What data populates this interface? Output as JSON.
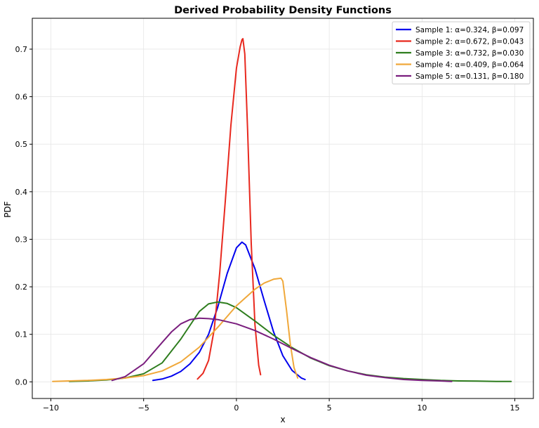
{
  "chart_data": {
    "type": "line",
    "title": "Derived Probability Density Functions",
    "xlabel": "x",
    "ylabel": "PDF",
    "xlim": [
      -11,
      16
    ],
    "ylim": [
      -0.035,
      0.765
    ],
    "xticks": [
      -10,
      -5,
      0,
      5,
      10,
      15
    ],
    "yticks": [
      0.0,
      0.1,
      0.2,
      0.3,
      0.4,
      0.5,
      0.6,
      0.7
    ],
    "xtick_labels": [
      "−10",
      "−5",
      "0",
      "5",
      "10",
      "15"
    ],
    "ytick_labels": [
      "0.0",
      "0.1",
      "0.2",
      "0.3",
      "0.4",
      "0.5",
      "0.6",
      "0.7"
    ],
    "grid": true,
    "legend_position": "top-right",
    "series": [
      {
        "name": "Sample 1: α=0.324, β=0.097",
        "color": "#0000ee",
        "x": [
          -4.5,
          -4.0,
          -3.5,
          -3.0,
          -2.5,
          -2.0,
          -1.5,
          -1.0,
          -0.5,
          0.0,
          0.3,
          0.5,
          1.0,
          1.5,
          2.0,
          2.5,
          3.0,
          3.5,
          3.7
        ],
        "y": [
          0.003,
          0.006,
          0.012,
          0.022,
          0.038,
          0.062,
          0.1,
          0.158,
          0.228,
          0.282,
          0.294,
          0.288,
          0.238,
          0.17,
          0.105,
          0.055,
          0.024,
          0.008,
          0.005
        ]
      },
      {
        "name": "Sample 2: α=0.672, β=0.043",
        "color": "#e8281e",
        "x": [
          -2.1,
          -1.8,
          -1.5,
          -1.2,
          -0.9,
          -0.6,
          -0.3,
          0.0,
          0.2,
          0.3,
          0.35,
          0.45,
          0.6,
          0.8,
          1.0,
          1.2,
          1.3
        ],
        "y": [
          0.006,
          0.018,
          0.045,
          0.11,
          0.23,
          0.38,
          0.54,
          0.66,
          0.705,
          0.72,
          0.722,
          0.69,
          0.53,
          0.29,
          0.12,
          0.035,
          0.015
        ]
      },
      {
        "name": "Sample 3: α=0.732, β=0.030",
        "color": "#2e7d1e",
        "x": [
          -9.0,
          -8.0,
          -7.0,
          -6.0,
          -5.0,
          -4.0,
          -3.0,
          -2.0,
          -1.5,
          -1.0,
          -0.5,
          0.0,
          1.0,
          2.0,
          3.0,
          4.0,
          5.0,
          6.0,
          7.0,
          8.0,
          9.0,
          10.0,
          11.0,
          12.0,
          13.0,
          14.0,
          14.8
        ],
        "y": [
          0.001,
          0.002,
          0.004,
          0.008,
          0.017,
          0.04,
          0.09,
          0.148,
          0.164,
          0.168,
          0.165,
          0.156,
          0.128,
          0.098,
          0.072,
          0.05,
          0.034,
          0.023,
          0.015,
          0.01,
          0.007,
          0.005,
          0.003,
          0.002,
          0.0015,
          0.001,
          0.001
        ]
      },
      {
        "name": "Sample 4: α=0.409, β=0.064",
        "color": "#f0a83a",
        "x": [
          -9.9,
          -9.0,
          -8.0,
          -7.0,
          -6.0,
          -5.0,
          -4.0,
          -3.0,
          -2.0,
          -1.0,
          0.0,
          1.0,
          1.5,
          2.0,
          2.4,
          2.5,
          2.7,
          2.9,
          3.1,
          3.3
        ],
        "y": [
          0.001,
          0.002,
          0.003,
          0.005,
          0.008,
          0.013,
          0.023,
          0.042,
          0.073,
          0.115,
          0.16,
          0.195,
          0.208,
          0.216,
          0.218,
          0.212,
          0.15,
          0.08,
          0.03,
          0.008
        ]
      },
      {
        "name": "Sample 5: α=0.131, β=0.180",
        "color": "#7a1e7e",
        "x": [
          -6.7,
          -6.0,
          -5.0,
          -4.0,
          -3.5,
          -3.0,
          -2.5,
          -2.0,
          -1.5,
          -1.0,
          0.0,
          1.0,
          2.0,
          3.0,
          4.0,
          5.0,
          6.0,
          7.0,
          8.0,
          9.0,
          10.0,
          11.0,
          11.6
        ],
        "y": [
          0.003,
          0.011,
          0.038,
          0.083,
          0.105,
          0.122,
          0.131,
          0.134,
          0.133,
          0.131,
          0.122,
          0.108,
          0.09,
          0.07,
          0.051,
          0.035,
          0.023,
          0.014,
          0.009,
          0.005,
          0.003,
          0.002,
          0.001
        ]
      }
    ]
  }
}
